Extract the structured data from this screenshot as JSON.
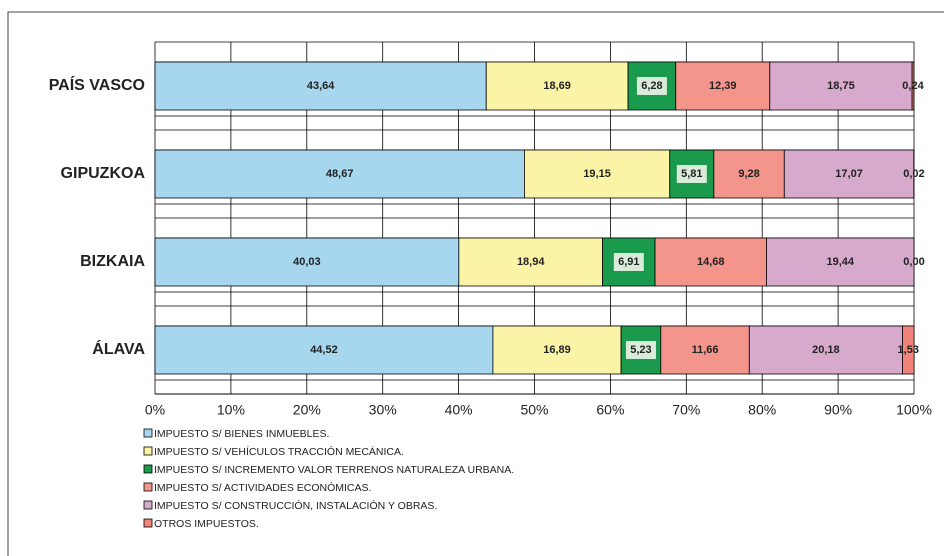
{
  "chart_data": {
    "type": "stacked-bar-horizontal",
    "categories": [
      "PAÍS VASCO",
      "GIPUZKOA",
      "BIZKAIA",
      "ÁLAVA"
    ],
    "series": [
      {
        "name": "IMPUESTO S/ BIENES INMUEBLES.",
        "color": "#a6d7ef",
        "values": [
          43.64,
          48.67,
          40.03,
          44.52
        ],
        "value_labels": [
          "43,64",
          "48,67",
          "40,03",
          "44,52"
        ]
      },
      {
        "name": "IMPUESTO S/ VEHÍCULOS TRACCIÓN MECÁNICA.",
        "color": "#fbf4a6",
        "values": [
          18.69,
          19.15,
          18.94,
          16.89
        ],
        "value_labels": [
          "18,69",
          "19,15",
          "18,94",
          "16,89"
        ]
      },
      {
        "name": "IMPUESTO S/ INCREMENTO VALOR TERRENOS NATURALEZA URBANA.",
        "color": "#1a9a4c",
        "values": [
          6.28,
          5.81,
          6.91,
          5.23
        ],
        "value_labels": [
          "6,28",
          "5,81",
          "6,91",
          "5,23"
        ]
      },
      {
        "name": "IMPUESTO S/ ACTIVIDADES ECONÓMICAS.",
        "color": "#f4958c",
        "values": [
          12.39,
          9.28,
          14.68,
          11.66
        ],
        "value_labels": [
          "12,39",
          "9,28",
          "14,68",
          "11,66"
        ]
      },
      {
        "name": "IMPUESTO S/ CONSTRUCCIÓN, INSTALACIÓN Y OBRAS.",
        "color": "#d6a9cd",
        "values": [
          18.75,
          17.07,
          19.44,
          20.18
        ],
        "value_labels": [
          "18,75",
          "17,07",
          "19,44",
          "20,18"
        ]
      },
      {
        "name": "OTROS IMPUESTOS.",
        "color": "#f0837a",
        "values": [
          0.24,
          0.02,
          0.0,
          1.53
        ],
        "value_labels": [
          "0,24",
          "0,02",
          "0,00",
          "1,53"
        ]
      }
    ],
    "xlim": [
      0,
      100
    ],
    "xticks": [
      {
        "value": 0,
        "label": "0%"
      },
      {
        "value": 10,
        "label": "10%"
      },
      {
        "value": 20,
        "label": "20%"
      },
      {
        "value": 30,
        "label": "30%"
      },
      {
        "value": 40,
        "label": "40%"
      },
      {
        "value": 50,
        "label": "50%"
      },
      {
        "value": 60,
        "label": "60%"
      },
      {
        "value": 70,
        "label": "70%"
      },
      {
        "value": 80,
        "label": "80%"
      },
      {
        "value": 90,
        "label": "90%"
      },
      {
        "value": 100,
        "label": "100%"
      }
    ],
    "grid": true
  }
}
